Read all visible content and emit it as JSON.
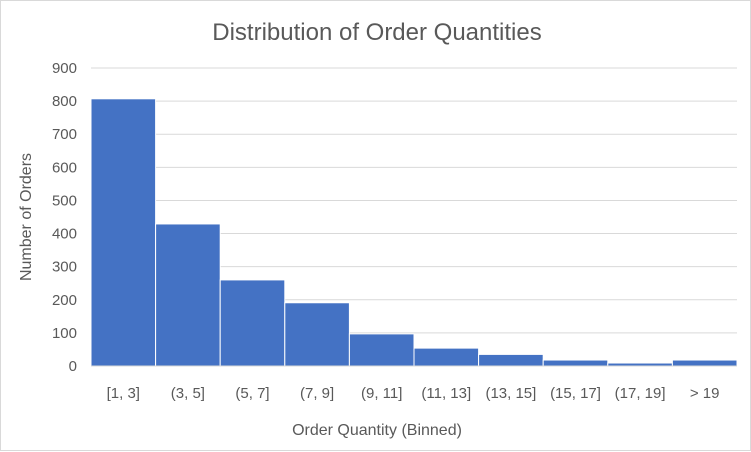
{
  "chart_data": {
    "type": "bar",
    "title": "Distribution of Order Quantities",
    "xlabel": "Order Quantity (Binned)",
    "ylabel": "Number of Orders",
    "categories": [
      "[1, 3]",
      "(3, 5]",
      "(5, 7]",
      "(7, 9]",
      "(9, 11]",
      "(11, 13]",
      "(13, 15]",
      "(15, 17]",
      "(17, 19]",
      "> 19"
    ],
    "values": [
      807,
      429,
      260,
      191,
      97,
      54,
      35,
      18,
      9,
      18
    ],
    "ylim": [
      0,
      900
    ],
    "yticks": [
      "0",
      "100",
      "200",
      "300",
      "400",
      "500",
      "600",
      "700",
      "800",
      "900"
    ],
    "grid": true,
    "bar_color": "#4472C4",
    "gridline_color": "#d9d9d9"
  }
}
